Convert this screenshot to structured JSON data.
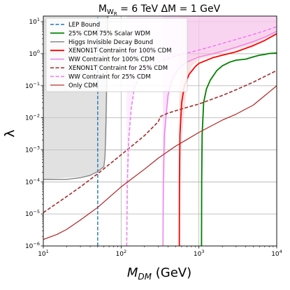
{
  "chart_data": {
    "type": "line",
    "title": "M_{W_R} = 6 TeV  ΔM = 1 GeV",
    "title_parts": {
      "m": "M",
      "sub": "W",
      "subsub": "R",
      "rest": " = 6 TeV  ΔM = 1 GeV"
    },
    "xlabel": "M_{DM} (GeV)",
    "xlabel_parts": {
      "m": "M",
      "sub": "DM",
      "rest": " (GeV)"
    },
    "ylabel": "λ",
    "xscale": "log",
    "yscale": "log",
    "xlim": [
      10,
      10000
    ],
    "ylim": [
      1e-06,
      15
    ],
    "grid": true,
    "legend_position": "top-left",
    "x_ticks": [
      {
        "value": 10,
        "label": "10",
        "sup": "1"
      },
      {
        "value": 100,
        "label": "10",
        "sup": "2"
      },
      {
        "value": 1000,
        "label": "10",
        "sup": "3"
      },
      {
        "value": 10000,
        "label": "10",
        "sup": "4"
      }
    ],
    "y_ticks": [
      {
        "value": 1e-06,
        "label": "10",
        "sup": "−6"
      },
      {
        "value": 1e-05,
        "label": "10",
        "sup": "−5"
      },
      {
        "value": 0.0001,
        "label": "10",
        "sup": "−4"
      },
      {
        "value": 0.001,
        "label": "10",
        "sup": "−3"
      },
      {
        "value": 0.01,
        "label": "10",
        "sup": "−2"
      },
      {
        "value": 0.1,
        "label": "10",
        "sup": "−1"
      },
      {
        "value": 1,
        "label": "10",
        "sup": "0"
      },
      {
        "value": 10,
        "label": "10",
        "sup": "1"
      }
    ],
    "shaded_regions": [
      {
        "color": "#c8c8c8",
        "opacity": 0.55,
        "points": [
          [
            10,
            15
          ],
          [
            10,
            0.00012
          ],
          [
            40,
            0.00015
          ],
          [
            50,
            0.00022
          ],
          [
            60,
            0.0003
          ],
          [
            63,
            0.0007
          ],
          [
            65,
            0.003
          ],
          [
            67,
            0.1
          ],
          [
            70,
            15
          ]
        ]
      },
      {
        "color": "#f9c0c0",
        "opacity": 0.45,
        "points": [
          [
            560,
            15
          ],
          [
            560,
            1e-06
          ],
          [
            600,
            0.002
          ],
          [
            700,
            0.1
          ],
          [
            800,
            0.4
          ],
          [
            1000,
            0.65
          ],
          [
            2000,
            1.05
          ],
          [
            5000,
            1.9
          ],
          [
            10000,
            4.5
          ],
          [
            10000,
            15
          ]
        ]
      },
      {
        "color": "#f5c0f5",
        "opacity": 0.45,
        "points": [
          [
            345,
            15
          ],
          [
            345,
            1e-06
          ],
          [
            380,
            0.01
          ],
          [
            430,
            0.1
          ],
          [
            520,
            0.3
          ],
          [
            700,
            0.6
          ],
          [
            1000,
            0.9
          ],
          [
            2000,
            1.1
          ],
          [
            5000,
            2.2
          ],
          [
            10000,
            5
          ],
          [
            10000,
            15
          ]
        ]
      },
      {
        "color": "#fad4fa",
        "opacity": 0.4,
        "points": [
          [
            118,
            15
          ],
          [
            118,
            1e-06
          ],
          [
            130,
            0.01
          ],
          [
            150,
            0.1
          ],
          [
            200,
            0.3
          ],
          [
            300,
            0.55
          ],
          [
            500,
            0.85
          ],
          [
            1000,
            1.1
          ],
          [
            2000,
            1.6
          ],
          [
            5000,
            3.2
          ],
          [
            10000,
            6.5
          ],
          [
            10000,
            15
          ]
        ]
      }
    ],
    "series": [
      {
        "name": "LEP Bound",
        "color": "#1f77b4",
        "style": "dashed",
        "width": 1.4,
        "points": [
          [
            50,
            1e-06
          ],
          [
            50,
            15
          ]
        ]
      },
      {
        "name": "25% CDM 75% Scalar WDM",
        "color": "#008000",
        "style": "solid",
        "width": 1.8,
        "points": [
          [
            1080,
            1e-06
          ],
          [
            1085,
            0.0001
          ],
          [
            1100,
            0.003
          ],
          [
            1150,
            0.03
          ],
          [
            1250,
            0.08
          ],
          [
            1400,
            0.15
          ],
          [
            1700,
            0.3
          ],
          [
            2000,
            0.42
          ],
          [
            2500,
            0.55
          ],
          [
            3000,
            0.63
          ],
          [
            4000,
            0.68
          ],
          [
            5000,
            0.8
          ],
          [
            6000,
            0.9
          ],
          [
            7000,
            0.95
          ],
          [
            8000,
            1.02
          ],
          [
            10000,
            1.05
          ]
        ]
      },
      {
        "name": "Higgs Invisible Decay Bound",
        "color": "#808080",
        "style": "solid",
        "width": 1.3,
        "points": [
          [
            10,
            0.00012
          ],
          [
            20,
            0.00012
          ],
          [
            30,
            0.000135
          ],
          [
            40,
            0.00016
          ],
          [
            50,
            0.00021
          ],
          [
            60,
            0.0003
          ],
          [
            62,
            0.0006
          ],
          [
            63,
            0.002
          ],
          [
            64,
            0.01
          ],
          [
            65,
            0.1
          ],
          [
            66,
            1
          ],
          [
            67,
            15
          ]
        ]
      },
      {
        "name": "XENON1T Contraint for 100% CDM",
        "color": "#ff0000",
        "style": "solid",
        "width": 1.8,
        "points": [
          [
            560,
            1e-06
          ],
          [
            562,
            0.0001
          ],
          [
            570,
            0.003
          ],
          [
            600,
            0.03
          ],
          [
            650,
            0.1
          ],
          [
            750,
            0.23
          ],
          [
            900,
            0.4
          ],
          [
            1000,
            0.5
          ],
          [
            1500,
            0.75
          ],
          [
            2000,
            0.9
          ],
          [
            3000,
            1.15
          ],
          [
            5000,
            1.8
          ],
          [
            7000,
            2.6
          ],
          [
            10000,
            4.2
          ]
        ]
      },
      {
        "name": "WW Contraint for 100% CDM",
        "color": "#ee82ee",
        "style": "solid",
        "width": 1.5,
        "points": [
          [
            345,
            1e-06
          ],
          [
            348,
            0.0001
          ],
          [
            360,
            0.003
          ],
          [
            400,
            0.05
          ],
          [
            450,
            0.15
          ],
          [
            550,
            0.35
          ],
          [
            700,
            0.55
          ],
          [
            1000,
            0.8
          ],
          [
            1500,
            1.0
          ],
          [
            2000,
            1.2
          ],
          [
            3000,
            1.6
          ],
          [
            5000,
            2.4
          ],
          [
            7000,
            3.3
          ],
          [
            10000,
            5.0
          ]
        ]
      },
      {
        "name": "XENON1T Contraint for 25% CDM",
        "color": "#a52a2a",
        "style": "dashed",
        "width": 1.6,
        "points": [
          [
            10,
            1.1e-05
          ],
          [
            20,
            3.5e-05
          ],
          [
            30,
            7e-05
          ],
          [
            50,
            0.00018
          ],
          [
            100,
            0.0007
          ],
          [
            200,
            0.0028
          ],
          [
            300,
            0.0075
          ],
          [
            320,
            0.011
          ],
          [
            400,
            0.014
          ],
          [
            600,
            0.019
          ],
          [
            1000,
            0.027
          ],
          [
            2000,
            0.05
          ],
          [
            3000,
            0.075
          ],
          [
            5000,
            0.13
          ],
          [
            10000,
            0.3
          ]
        ]
      },
      {
        "name": "WW Contraint for 25% CDM",
        "color": "#ee82ee",
        "style": "dashed",
        "width": 1.6,
        "points": [
          [
            118,
            1e-06
          ],
          [
            120,
            0.0001
          ],
          [
            125,
            0.002
          ],
          [
            135,
            0.02
          ],
          [
            150,
            0.1
          ],
          [
            200,
            0.3
          ],
          [
            300,
            0.55
          ],
          [
            500,
            0.85
          ],
          [
            1000,
            1.3
          ],
          [
            2000,
            2.1
          ],
          [
            3000,
            2.8
          ],
          [
            5000,
            4.0
          ],
          [
            7000,
            5.2
          ],
          [
            10000,
            7.0
          ]
        ]
      },
      {
        "name": "Only CDM",
        "color": "#b22222",
        "style": "solid",
        "width": 1.2,
        "points": [
          [
            10,
            1.6e-06
          ],
          [
            15,
            2.3e-06
          ],
          [
            20,
            3.3e-06
          ],
          [
            30,
            6.5e-06
          ],
          [
            50,
            1.6e-05
          ],
          [
            100,
            7e-05
          ],
          [
            200,
            0.00025
          ],
          [
            300,
            0.00055
          ],
          [
            500,
            0.0013
          ],
          [
            700,
            0.0021
          ],
          [
            1000,
            0.0035
          ],
          [
            2000,
            0.0085
          ],
          [
            3000,
            0.013
          ],
          [
            5000,
            0.025
          ],
          [
            10000,
            0.1
          ]
        ]
      }
    ]
  }
}
